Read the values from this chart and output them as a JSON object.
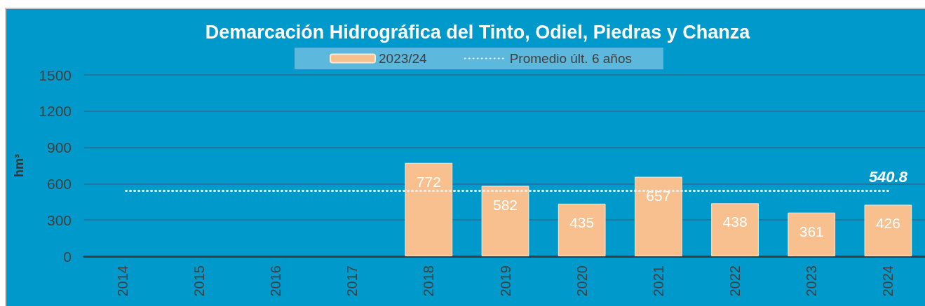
{
  "chart_data": {
    "type": "bar",
    "title": "Demarcación Hidrográfica del Tinto, Odiel, Piedras y Chanza",
    "ylabel": "hm³",
    "categories": [
      "2014",
      "2015",
      "2016",
      "2017",
      "2018",
      "2019",
      "2020",
      "2021",
      "2022",
      "2023",
      "2024"
    ],
    "series": [
      {
        "name": "2023/24",
        "color": "#f8c08f",
        "values": [
          null,
          null,
          null,
          null,
          772,
          582,
          435,
          657,
          438,
          361,
          426
        ],
        "value_labels": [
          null,
          null,
          null,
          null,
          "772",
          "582",
          "435",
          "657",
          "438",
          "361",
          "426"
        ]
      },
      {
        "name": "Promedio últ. 6 años",
        "type": "line",
        "color": "#e6f0f5",
        "line_style": "dotted",
        "marker": "none",
        "values": [
          540.8,
          540.8,
          540.8,
          540.8,
          540.8,
          540.8,
          540.8,
          540.8,
          540.8,
          540.8,
          540.8
        ],
        "value_labels": [
          null,
          null,
          null,
          null,
          null,
          null,
          null,
          null,
          null,
          null,
          "540.8"
        ]
      }
    ],
    "ylim": [
      0,
      1500
    ],
    "yticks": [
      0,
      300,
      600,
      900,
      1200,
      1500
    ],
    "grid": "y",
    "legend": "top"
  }
}
